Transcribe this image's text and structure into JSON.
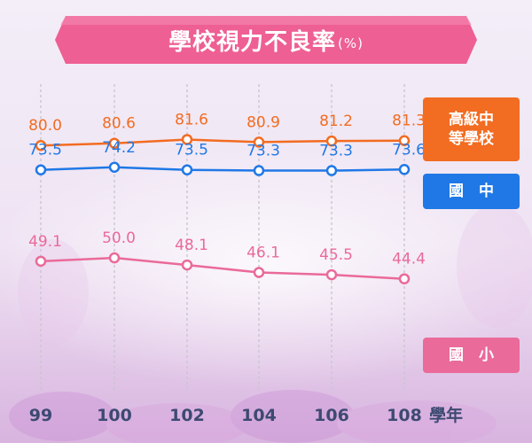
{
  "title": "學校視力不良率",
  "title_unit": "(%)",
  "colors": {
    "high": "#f26c21",
    "junior": "#1f78e6",
    "elementary": "#ea6a99",
    "banner": "#ee5f93",
    "axis_text": "#3d4a72",
    "grid": "#c7c7cf"
  },
  "chart_data": {
    "type": "line",
    "x": [
      "99",
      "100",
      "102",
      "104",
      "106",
      "108"
    ],
    "xlabel": "學年",
    "series": [
      {
        "name": "高級中等學校",
        "color": "#f26c21",
        "values": [
          80.0,
          80.6,
          81.6,
          80.9,
          81.2,
          81.3
        ]
      },
      {
        "name": "國　中",
        "color": "#1f78e6",
        "values": [
          73.5,
          74.2,
          73.5,
          73.3,
          73.3,
          73.6
        ]
      },
      {
        "name": "國　小",
        "color": "#ea6a99",
        "values": [
          49.1,
          50.0,
          48.1,
          46.1,
          45.5,
          44.4
        ]
      }
    ],
    "grid": true,
    "legend": "right"
  },
  "legend": [
    {
      "label": "高級中\n等學校"
    },
    {
      "label": "國　中"
    },
    {
      "label": "國　小"
    }
  ]
}
